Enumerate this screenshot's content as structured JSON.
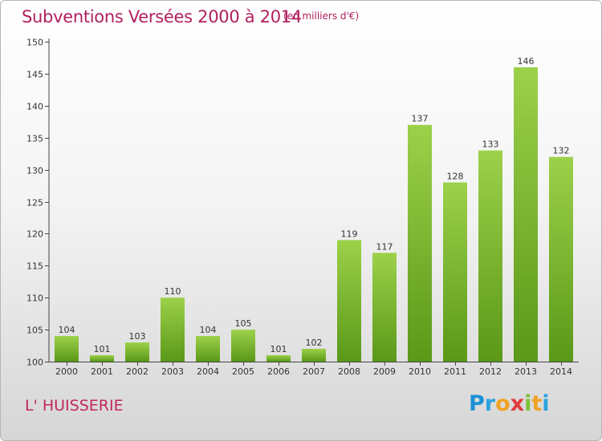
{
  "header": {
    "title": "Subventions Versées 2000 à 2014",
    "unit": "(en milliers d'€)"
  },
  "commune": "L' HUISSERIE",
  "logo": {
    "letters": [
      "P",
      "r",
      "o",
      "x",
      "i",
      "t",
      "i"
    ],
    "colors": [
      "#1c8fd6",
      "#2aa3e0",
      "#f0a224",
      "#e23a3a",
      "#7cc23a",
      "#f0a224",
      "#2aa3e0"
    ]
  },
  "colors": {
    "title": "#b0205e",
    "bar_light": "#9cd14a",
    "bar_dark": "#5a9818"
  },
  "chart_data": {
    "type": "bar",
    "title": "Subventions Versées 2000 à 2014",
    "subtitle": "(en milliers d'€)",
    "xlabel": "",
    "ylabel": "",
    "categories": [
      "2000",
      "2001",
      "2002",
      "2003",
      "2004",
      "2005",
      "2006",
      "2007",
      "2008",
      "2009",
      "2010",
      "2011",
      "2012",
      "2013",
      "2014"
    ],
    "values": [
      104,
      101,
      103,
      110,
      104,
      105,
      101,
      102,
      119,
      117,
      137,
      128,
      133,
      146,
      132
    ],
    "ylim": [
      100,
      150
    ],
    "yticks": [
      100,
      105,
      110,
      115,
      120,
      125,
      130,
      135,
      140,
      145,
      150
    ],
    "grid": false,
    "legend": "none"
  }
}
